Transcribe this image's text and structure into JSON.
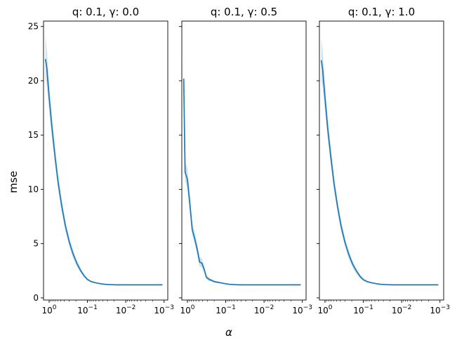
{
  "chart_data": {
    "type": "line",
    "shared_ylabel": "mse",
    "shared_xlabel": "α",
    "x_scale": "log",
    "x_inverted": true,
    "xlim": [
      1.4,
      0.0008
    ],
    "ylim": [
      -0.2,
      25.5
    ],
    "x_ticks": [
      {
        "value": 1,
        "base": "10",
        "exp": "0"
      },
      {
        "value": 0.1,
        "base": "10",
        "exp": "−1"
      },
      {
        "value": 0.01,
        "base": "10",
        "exp": "−2"
      },
      {
        "value": 0.001,
        "base": "10",
        "exp": "−3"
      }
    ],
    "y_ticks": [
      {
        "value": 0,
        "label": "0"
      },
      {
        "value": 5,
        "label": "5"
      },
      {
        "value": 10,
        "label": "10"
      },
      {
        "value": 15,
        "label": "15"
      },
      {
        "value": 20,
        "label": "20"
      },
      {
        "value": 25,
        "label": "25"
      }
    ],
    "line_color": "#1f77b4",
    "band_color": "#1f77b4",
    "panels": [
      {
        "title": "q: 0.1, γ: 0.0",
        "x": [
          1.25,
          1.15,
          1.0,
          0.85,
          0.7,
          0.58,
          0.47,
          0.38,
          0.3,
          0.24,
          0.19,
          0.15,
          0.12,
          0.1,
          0.08,
          0.06,
          0.045,
          0.035,
          0.025,
          0.018,
          0.012,
          0.008,
          0.005,
          0.003,
          0.002,
          0.0011
        ],
        "y": [
          22.0,
          21.2,
          18.5,
          15.8,
          13.0,
          10.6,
          8.5,
          6.7,
          5.2,
          4.1,
          3.2,
          2.5,
          2.0,
          1.7,
          1.5,
          1.38,
          1.3,
          1.25,
          1.22,
          1.2,
          1.2,
          1.2,
          1.2,
          1.2,
          1.2,
          1.2
        ],
        "y_lower": [
          20.2,
          19.6,
          17.3,
          14.8,
          12.2,
          9.9,
          7.9,
          6.2,
          4.8,
          3.7,
          2.9,
          2.3,
          1.85,
          1.6,
          1.43,
          1.33,
          1.27,
          1.23,
          1.2,
          1.19,
          1.19,
          1.19,
          1.19,
          1.19,
          1.19,
          1.19
        ],
        "y_upper": [
          24.2,
          22.9,
          19.8,
          16.9,
          13.9,
          11.3,
          9.1,
          7.2,
          5.6,
          4.5,
          3.5,
          2.75,
          2.15,
          1.8,
          1.57,
          1.43,
          1.33,
          1.27,
          1.24,
          1.21,
          1.21,
          1.21,
          1.21,
          1.21,
          1.21,
          1.21
        ]
      },
      {
        "title": "q: 0.1, γ: 0.5",
        "x": [
          1.25,
          1.15,
          1.0,
          0.85,
          0.75,
          0.65,
          0.55,
          0.48,
          0.42,
          0.37,
          0.32,
          0.27,
          0.23,
          0.2,
          0.17,
          0.14,
          0.12,
          0.1,
          0.08,
          0.06,
          0.045,
          0.035,
          0.025,
          0.018,
          0.012,
          0.008,
          0.005,
          0.003,
          0.002,
          0.0011
        ],
        "y": [
          20.2,
          11.6,
          10.9,
          8.4,
          6.3,
          5.5,
          4.4,
          3.3,
          3.2,
          2.7,
          1.9,
          1.7,
          1.6,
          1.5,
          1.45,
          1.4,
          1.35,
          1.3,
          1.25,
          1.22,
          1.2,
          1.2,
          1.2,
          1.2,
          1.2,
          1.2,
          1.2,
          1.2,
          1.2,
          1.2
        ],
        "y_lower": [
          18.2,
          10.8,
          10.0,
          7.6,
          5.8,
          5.0,
          3.9,
          2.9,
          2.8,
          2.4,
          1.7,
          1.55,
          1.5,
          1.42,
          1.38,
          1.34,
          1.3,
          1.26,
          1.22,
          1.2,
          1.19,
          1.19,
          1.19,
          1.19,
          1.19,
          1.19,
          1.19,
          1.19,
          1.19,
          1.19
        ],
        "y_upper": [
          22.6,
          12.6,
          11.9,
          9.3,
          7.0,
          6.1,
          5.0,
          3.8,
          3.6,
          3.0,
          2.15,
          1.88,
          1.72,
          1.6,
          1.53,
          1.47,
          1.41,
          1.35,
          1.29,
          1.25,
          1.22,
          1.21,
          1.21,
          1.21,
          1.21,
          1.21,
          1.21,
          1.21,
          1.21,
          1.21
        ]
      },
      {
        "title": "q: 0.1, γ: 1.0",
        "x": [
          1.25,
          1.15,
          1.0,
          0.85,
          0.7,
          0.58,
          0.47,
          0.38,
          0.3,
          0.24,
          0.19,
          0.15,
          0.12,
          0.1,
          0.08,
          0.06,
          0.045,
          0.035,
          0.025,
          0.018,
          0.012,
          0.008,
          0.005,
          0.003,
          0.002,
          0.0011
        ],
        "y": [
          21.9,
          21.0,
          18.4,
          15.6,
          12.9,
          10.5,
          8.4,
          6.6,
          5.1,
          4.0,
          3.1,
          2.45,
          1.95,
          1.68,
          1.5,
          1.38,
          1.3,
          1.25,
          1.22,
          1.2,
          1.2,
          1.2,
          1.2,
          1.2,
          1.2,
          1.2
        ],
        "y_lower": [
          20.0,
          19.4,
          17.2,
          14.6,
          12.1,
          9.8,
          7.8,
          6.1,
          4.7,
          3.6,
          2.8,
          2.2,
          1.8,
          1.57,
          1.42,
          1.32,
          1.26,
          1.22,
          1.2,
          1.19,
          1.19,
          1.19,
          1.19,
          1.19,
          1.19,
          1.19
        ],
        "y_upper": [
          24.0,
          22.7,
          19.7,
          16.7,
          13.8,
          11.2,
          9.0,
          7.1,
          5.5,
          4.4,
          3.4,
          2.7,
          2.12,
          1.8,
          1.58,
          1.44,
          1.34,
          1.28,
          1.24,
          1.21,
          1.21,
          1.21,
          1.21,
          1.21,
          1.21,
          1.21
        ]
      }
    ]
  }
}
